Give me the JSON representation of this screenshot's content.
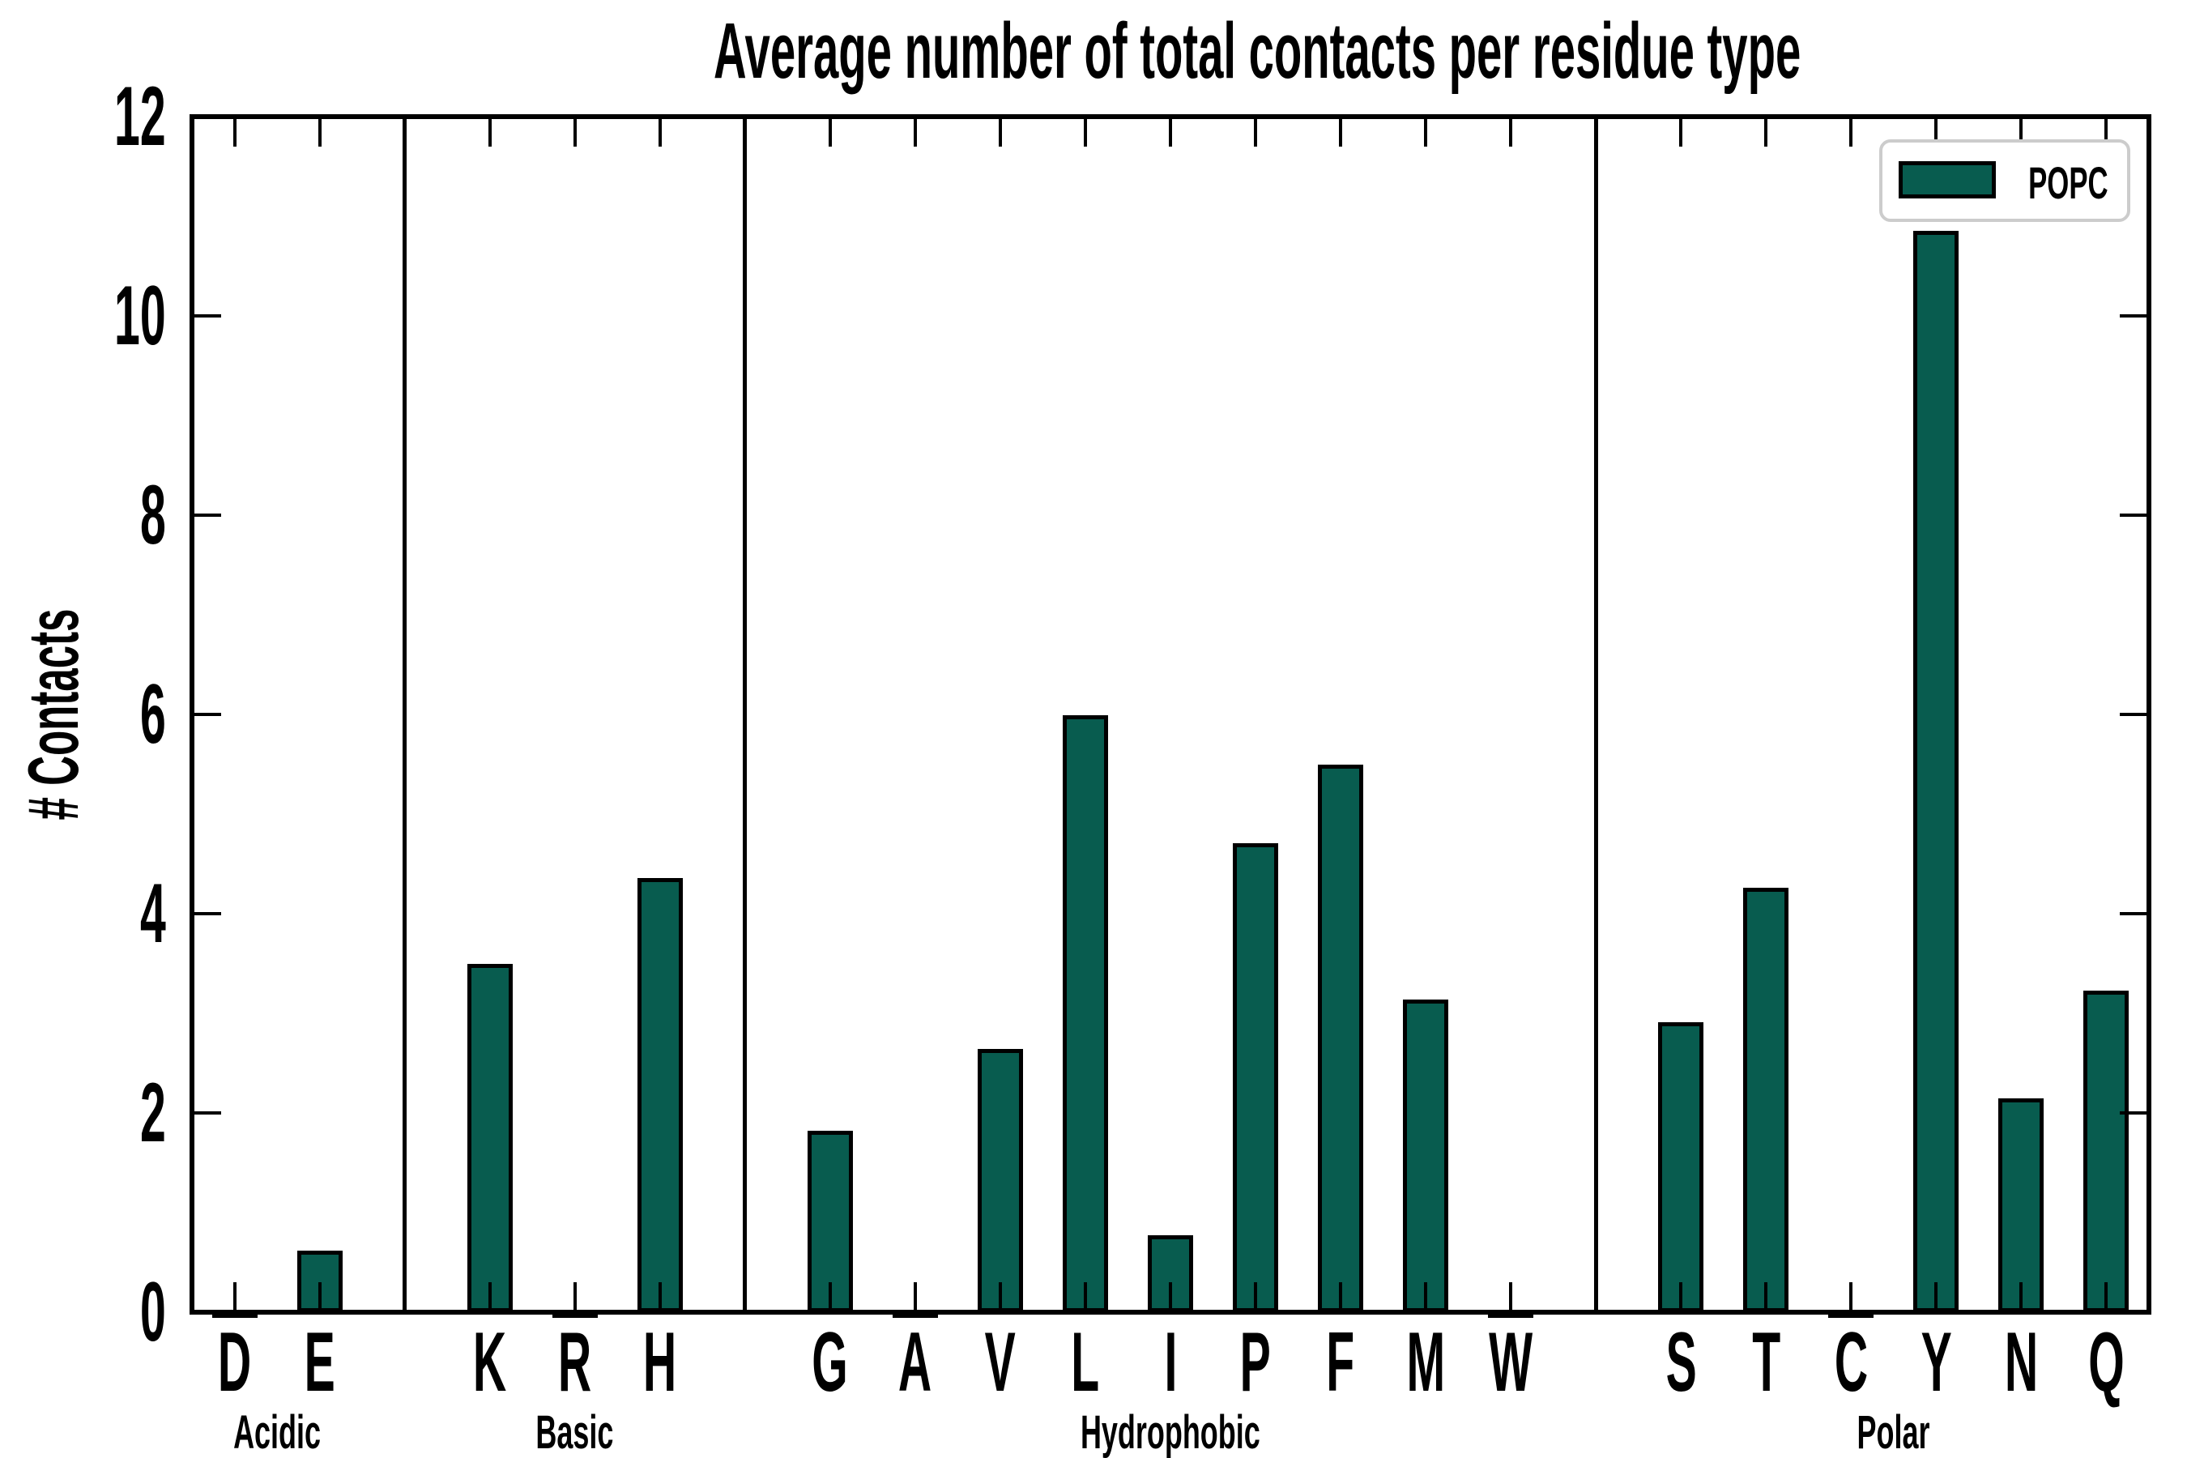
{
  "chart_data": {
    "type": "bar",
    "title": "Average number of total contacts per residue type",
    "ylabel": "# Contacts",
    "xlabel": "",
    "ylim": [
      0,
      12
    ],
    "yticks": [
      0,
      2,
      4,
      6,
      8,
      10,
      12
    ],
    "grid": false,
    "legend_position": "upper right",
    "legend": [
      {
        "label": "POPC",
        "color": "#085c4f"
      }
    ],
    "bar_fill": "#085c4f",
    "bar_edge": "#000000",
    "legend_border_color": "#cccccc",
    "axis_color": "#000000",
    "background_color": "#ffffff",
    "groups": [
      {
        "label": "Acidic",
        "categories": [
          "D",
          "E"
        ],
        "values": [
          0.02,
          0.62
        ]
      },
      {
        "label": "Basic",
        "categories": [
          "K",
          "R",
          "H"
        ],
        "values": [
          3.5,
          0.02,
          4.36
        ]
      },
      {
        "label": "Hydrophobic",
        "categories": [
          "G",
          "A",
          "V",
          "L",
          "I",
          "P",
          "F",
          "M",
          "W"
        ],
        "values": [
          1.82,
          0.02,
          2.64,
          5.99,
          0.77,
          4.71,
          5.5,
          3.14,
          0.02
        ]
      },
      {
        "label": "Polar",
        "categories": [
          "S",
          "T",
          "C",
          "Y",
          "N",
          "Q"
        ],
        "values": [
          2.91,
          4.26,
          0.02,
          10.85,
          2.15,
          3.23
        ]
      }
    ],
    "series": [
      {
        "name": "POPC",
        "values_by_residue": {
          "D": 0.02,
          "E": 0.62,
          "K": 3.5,
          "R": 0.02,
          "H": 4.36,
          "G": 1.82,
          "A": 0.02,
          "V": 2.64,
          "L": 5.99,
          "I": 0.77,
          "P": 4.71,
          "F": 5.5,
          "M": 3.14,
          "W": 0.02,
          "S": 2.91,
          "T": 4.26,
          "C": 0.02,
          "Y": 10.85,
          "N": 2.15,
          "Q": 3.23
        }
      }
    ]
  }
}
